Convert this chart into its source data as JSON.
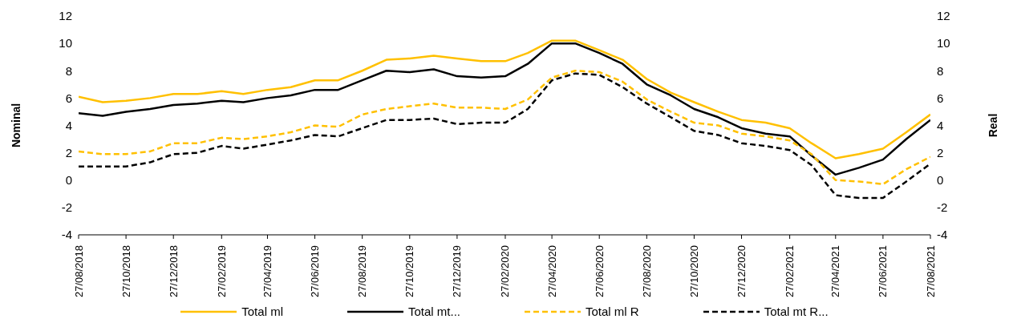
{
  "chart_data": {
    "type": "line",
    "x": [
      "2018-08-27",
      "2018-09-27",
      "2018-10-27",
      "2018-11-27",
      "2018-12-27",
      "2019-01-27",
      "2019-02-27",
      "2019-03-27",
      "2019-04-27",
      "2019-05-27",
      "2019-06-27",
      "2019-07-27",
      "2019-08-27",
      "2019-09-27",
      "2019-10-27",
      "2019-11-27",
      "2019-12-27",
      "2020-01-27",
      "2020-02-27",
      "2020-03-27",
      "2020-04-27",
      "2020-05-27",
      "2020-06-27",
      "2020-07-27",
      "2020-08-27",
      "2020-09-27",
      "2020-10-27",
      "2020-11-27",
      "2020-12-27",
      "2021-01-27",
      "2021-02-27",
      "2021-03-27",
      "2021-04-27",
      "2021-05-27",
      "2021-06-27",
      "2021-07-27",
      "2021-08-27"
    ],
    "series": [
      {
        "name": "Total ml",
        "color": "#ffc000",
        "line_style": "solid",
        "values": [
          6.1,
          5.7,
          5.8,
          6.0,
          6.3,
          6.3,
          6.5,
          6.3,
          6.6,
          6.8,
          7.3,
          7.3,
          8.0,
          8.8,
          8.9,
          9.1,
          8.9,
          8.7,
          8.7,
          9.3,
          10.2,
          10.2,
          9.5,
          8.8,
          7.4,
          6.4,
          5.7,
          5.0,
          4.4,
          4.2,
          3.8,
          2.7,
          1.6,
          1.9,
          2.3,
          3.5,
          4.8
        ]
      },
      {
        "name": "Total mt...",
        "color": "#000000",
        "line_style": "solid",
        "values": [
          4.9,
          4.7,
          5.0,
          5.2,
          5.5,
          5.6,
          5.8,
          5.7,
          6.0,
          6.2,
          6.6,
          6.6,
          7.3,
          8.0,
          7.9,
          8.1,
          7.6,
          7.5,
          7.6,
          8.5,
          10.0,
          10.0,
          9.3,
          8.5,
          7.0,
          6.2,
          5.2,
          4.6,
          3.8,
          3.4,
          3.2,
          1.8,
          0.4,
          0.9,
          1.5,
          3.0,
          4.4
        ]
      },
      {
        "name": "Total ml R",
        "color": "#ffc000",
        "line_style": "dashed",
        "axis": "y2",
        "values": [
          2.1,
          1.9,
          1.9,
          2.1,
          2.7,
          2.7,
          3.1,
          3.0,
          3.2,
          3.5,
          4.0,
          3.9,
          4.8,
          5.2,
          5.4,
          5.6,
          5.3,
          5.3,
          5.2,
          5.9,
          7.5,
          8.0,
          7.9,
          7.2,
          5.9,
          5.0,
          4.2,
          4.0,
          3.4,
          3.2,
          2.9,
          1.9,
          0.0,
          -0.1,
          -0.3,
          0.8,
          1.7
        ]
      },
      {
        "name": "Total mt R...",
        "color": "#000000",
        "line_style": "dashed",
        "axis": "y2",
        "values": [
          1.0,
          1.0,
          1.0,
          1.3,
          1.9,
          2.0,
          2.5,
          2.3,
          2.6,
          2.9,
          3.3,
          3.2,
          3.8,
          4.4,
          4.4,
          4.5,
          4.1,
          4.2,
          4.2,
          5.2,
          7.3,
          7.8,
          7.7,
          6.8,
          5.6,
          4.6,
          3.6,
          3.3,
          2.7,
          2.5,
          2.2,
          1.1,
          -1.1,
          -1.3,
          -1.3,
          -0.1,
          1.2
        ]
      }
    ],
    "xlim": [
      "2018-08-27",
      "2021-08-27"
    ],
    "xticks": [
      {
        "value": "2018-08-27",
        "label": "27/08/2018"
      },
      {
        "value": "2018-10-27",
        "label": "27/10/2018"
      },
      {
        "value": "2018-12-27",
        "label": "27/12/2018"
      },
      {
        "value": "2019-02-27",
        "label": "27/02/2019"
      },
      {
        "value": "2019-04-27",
        "label": "27/04/2019"
      },
      {
        "value": "2019-06-27",
        "label": "27/06/2019"
      },
      {
        "value": "2019-08-27",
        "label": "27/08/2019"
      },
      {
        "value": "2019-10-27",
        "label": "27/10/2019"
      },
      {
        "value": "2019-12-27",
        "label": "27/12/2019"
      },
      {
        "value": "2020-02-27",
        "label": "27/02/2020"
      },
      {
        "value": "2020-04-27",
        "label": "27/04/2020"
      },
      {
        "value": "2020-06-27",
        "label": "27/06/2020"
      },
      {
        "value": "2020-08-27",
        "label": "27/08/2020"
      },
      {
        "value": "2020-10-27",
        "label": "27/10/2020"
      },
      {
        "value": "2020-12-27",
        "label": "27/12/2020"
      },
      {
        "value": "2021-02-27",
        "label": "27/02/2021"
      },
      {
        "value": "2021-04-27",
        "label": "27/04/2021"
      },
      {
        "value": "2021-06-27",
        "label": "27/06/2021"
      },
      {
        "value": "2021-08-27",
        "label": "27/08/2021"
      }
    ],
    "ylabel": "Nominal",
    "y2label": "Real",
    "ylim": [
      -4,
      12
    ],
    "yticks": [
      -4,
      -2,
      0,
      2,
      4,
      6,
      8,
      10,
      12
    ],
    "y2lim": [
      -4,
      12
    ],
    "y2ticks": [
      -4,
      -2,
      0,
      2,
      4,
      6,
      8,
      10,
      12
    ],
    "grid": false,
    "legend": "bottom",
    "marker": "none"
  }
}
